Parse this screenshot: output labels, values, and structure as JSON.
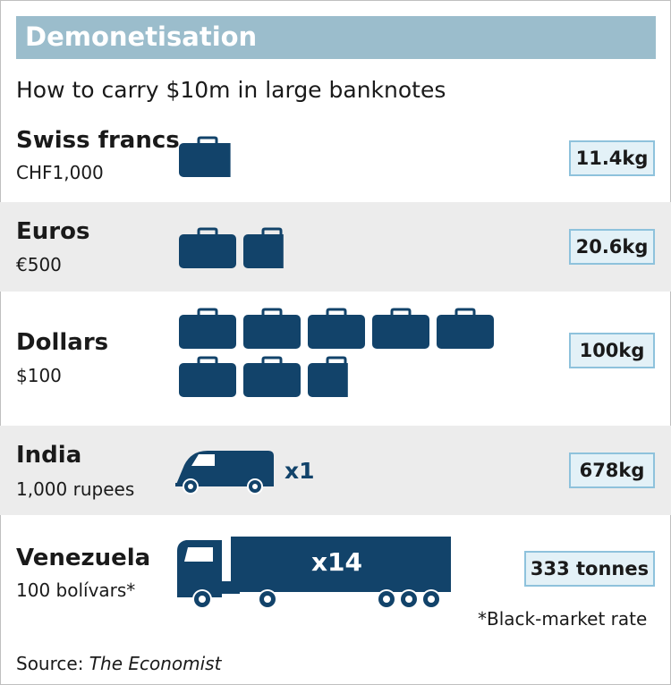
{
  "header": {
    "title": "Demonetisation",
    "subtitle": "How to carry $10m in large banknotes"
  },
  "colors": {
    "title_bar": "#9bbdcc",
    "icon": "#12436a",
    "row_band": "#ececec",
    "value_box_fill": "#e3f1f7",
    "value_box_border": "#8ec2dc"
  },
  "chart_data": {
    "type": "table",
    "unit_icon": "briefcase-icon",
    "rows": [
      {
        "currency": "Swiss francs",
        "note": "CHF1,000",
        "weight": "11.4kg",
        "briefcases": 0.9
      },
      {
        "currency": "Euros",
        "note": "€500",
        "weight": "20.6kg",
        "briefcases": 1.7
      },
      {
        "currency": "Dollars",
        "note": "$100",
        "weight": "100kg",
        "briefcases": 7.7
      },
      {
        "currency": "India",
        "note": "1,000 rupees",
        "weight": "678kg",
        "vehicle": "van-icon",
        "vehicle_count": "x1"
      },
      {
        "currency": "Venezuela",
        "note": "100 bolívars*",
        "weight": "333 tonnes",
        "vehicle": "truck-icon",
        "vehicle_count": "x14"
      }
    ]
  },
  "footnote": "*Black-market rate",
  "source": {
    "label": "Source:",
    "publication": "The Economist"
  }
}
